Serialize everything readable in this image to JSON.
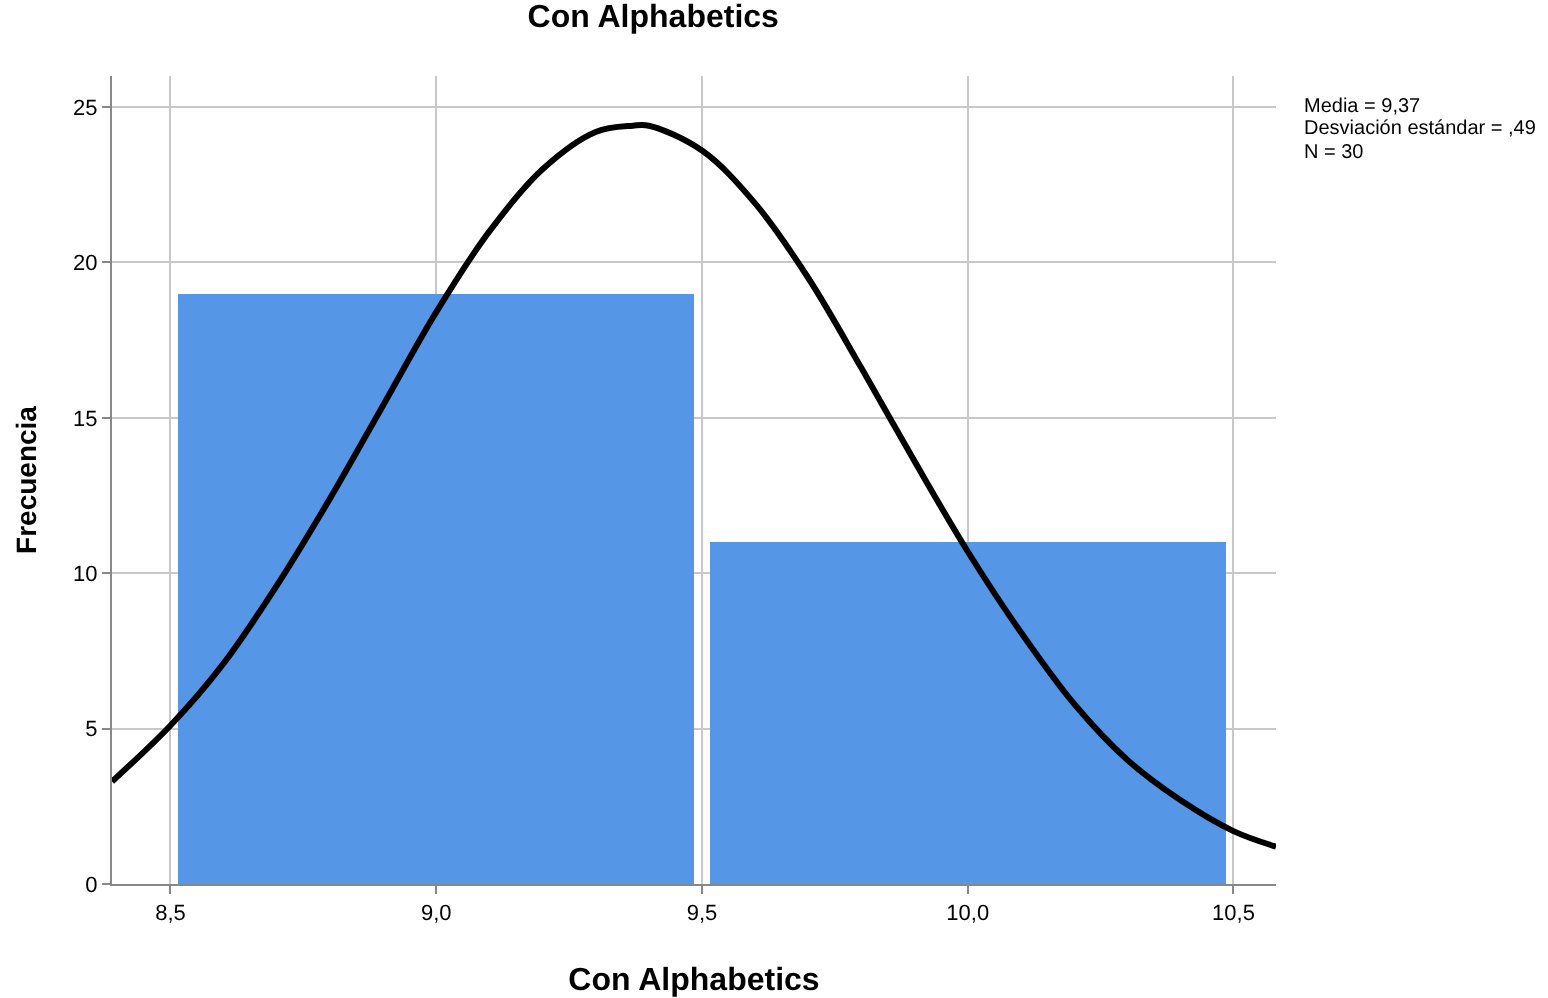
{
  "chart_data": {
    "type": "histogram",
    "title": "Con Alphabetics",
    "xlabel": "Con Alphabetics",
    "ylabel": "Frecuencia",
    "bins": [
      8.5,
      9.5,
      10.5
    ],
    "values": [
      19,
      11
    ],
    "color": "#5596e6",
    "series": [
      {
        "type": "line",
        "color": "#000000",
        "x": [
          8.39,
          8.5,
          8.6,
          8.7,
          8.8,
          8.9,
          9.0,
          9.1,
          9.2,
          9.3,
          9.37,
          9.4,
          9.5,
          9.6,
          9.7,
          9.8,
          9.9,
          10.0,
          10.1,
          10.2,
          10.3,
          10.4,
          10.5,
          10.58
        ],
        "values": [
          3.3,
          5.1,
          7.1,
          9.6,
          12.4,
          15.4,
          18.4,
          21.0,
          23.0,
          24.2,
          24.4,
          24.4,
          23.6,
          21.9,
          19.5,
          16.6,
          13.6,
          10.7,
          8.1,
          5.8,
          4.0,
          2.7,
          1.7,
          1.2
        ]
      }
    ],
    "xlim": [
      8.39,
      10.58
    ],
    "xticks": [
      {
        "value": 8.5,
        "label": "8,5"
      },
      {
        "value": 9.0,
        "label": "9,0"
      },
      {
        "value": 9.5,
        "label": "9,5"
      },
      {
        "value": 10.0,
        "label": "10,0"
      },
      {
        "value": 10.5,
        "label": "10,5"
      }
    ],
    "ylim": [
      0,
      26
    ],
    "yticks": [
      0,
      5,
      10,
      15,
      20,
      25
    ],
    "grid": true,
    "annotations": [
      "Media = 9,37",
      "Desviación estándar = ,49",
      "N = 30"
    ]
  }
}
